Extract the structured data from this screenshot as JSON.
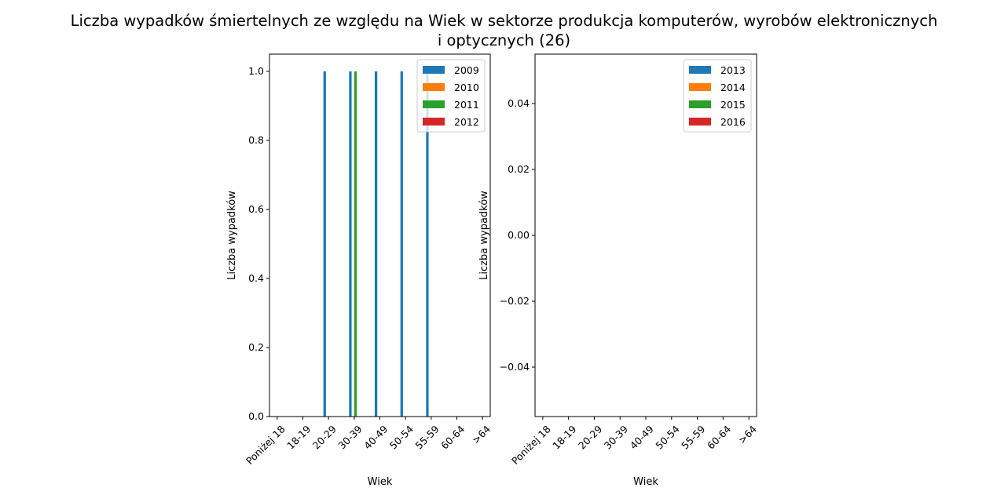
{
  "title_lines": [
    "Liczba wypadków śmiertelnych ze względu na Wiek w sektorze produkcja komputerów, wyrobów elektronicznych",
    "i optycznych (26)"
  ],
  "colors": {
    "series": [
      "#1f77b4",
      "#ff7f0e",
      "#2ca02c",
      "#d62728"
    ],
    "axes": "#000000",
    "background": "#ffffff",
    "legend_border": "#cccccc"
  },
  "chart_data": [
    {
      "type": "bar",
      "title": "",
      "xlabel": "Wiek",
      "ylabel": "Liczba wypadków",
      "categories": [
        "Poniżej 18",
        "18-19",
        "20-29",
        "30-39",
        "40-49",
        "50-54",
        "55-59",
        "60-64",
        ">64"
      ],
      "ylim": [
        0,
        1.05
      ],
      "yticks": [
        0.0,
        0.2,
        0.4,
        0.6,
        0.8,
        1.0
      ],
      "ytick_labels": [
        "0.0",
        "0.2",
        "0.4",
        "0.6",
        "0.8",
        "1.0"
      ],
      "grid": false,
      "legend_position": "top-right",
      "series": [
        {
          "name": "2009",
          "values": [
            0,
            0,
            1,
            1,
            1,
            1,
            1,
            0,
            0
          ]
        },
        {
          "name": "2010",
          "values": [
            0,
            0,
            0,
            0,
            0,
            0,
            0,
            0,
            0
          ]
        },
        {
          "name": "2011",
          "values": [
            0,
            0,
            0,
            1,
            0,
            0,
            0,
            0,
            0
          ]
        },
        {
          "name": "2012",
          "values": [
            0,
            0,
            0,
            0,
            0,
            0,
            0,
            0,
            0
          ]
        }
      ]
    },
    {
      "type": "bar",
      "title": "",
      "xlabel": "Wiek",
      "ylabel": "Liczba wypadków",
      "categories": [
        "Poniżej 18",
        "18-19",
        "20-29",
        "30-39",
        "40-49",
        "50-54",
        "55-59",
        "60-64",
        ">64"
      ],
      "ylim": [
        -0.055,
        0.055
      ],
      "yticks": [
        -0.04,
        -0.02,
        0.0,
        0.02,
        0.04
      ],
      "ytick_labels": [
        "−0.04",
        "−0.02",
        "0.00",
        "0.02",
        "0.04"
      ],
      "grid": false,
      "legend_position": "top-right",
      "series": [
        {
          "name": "2013",
          "values": [
            0,
            0,
            0,
            0,
            0,
            0,
            0,
            0,
            0
          ]
        },
        {
          "name": "2014",
          "values": [
            0,
            0,
            0,
            0,
            0,
            0,
            0,
            0,
            0
          ]
        },
        {
          "name": "2015",
          "values": [
            0,
            0,
            0,
            0,
            0,
            0,
            0,
            0,
            0
          ]
        },
        {
          "name": "2016",
          "values": [
            0,
            0,
            0,
            0,
            0,
            0,
            0,
            0,
            0
          ]
        }
      ]
    }
  ]
}
